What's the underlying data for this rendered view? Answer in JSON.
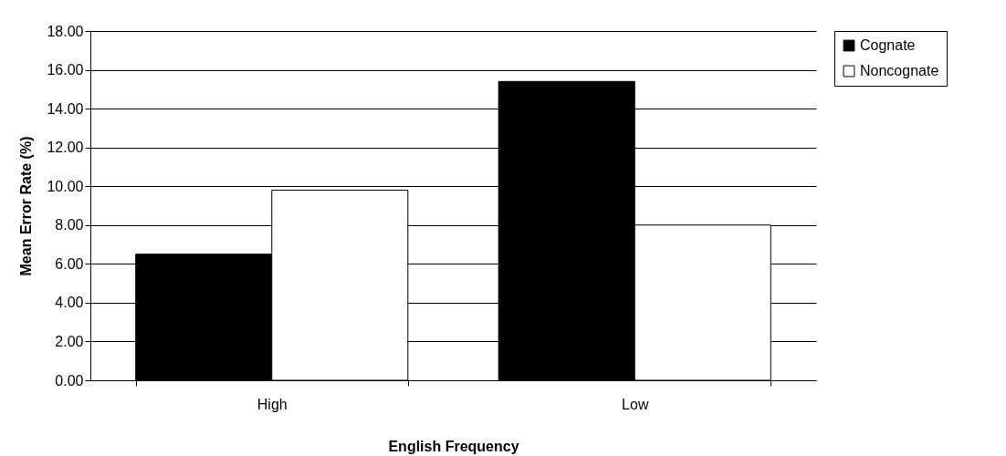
{
  "chart_data": {
    "type": "bar",
    "xlabel": "English Frequency",
    "ylabel": "Mean Error Rate (%)",
    "categories": [
      "High",
      "Low"
    ],
    "series": [
      {
        "name": "Cognate",
        "color": "#000000",
        "values": [
          6.5,
          15.4
        ]
      },
      {
        "name": "Noncognate",
        "color": "#ffffff",
        "values": [
          9.8,
          8.0
        ]
      }
    ],
    "ylim": [
      0,
      18
    ],
    "yticks": [
      {
        "value": 0,
        "label": "0.00"
      },
      {
        "value": 2,
        "label": "2.00"
      },
      {
        "value": 4,
        "label": "4.00"
      },
      {
        "value": 6,
        "label": "6.00"
      },
      {
        "value": 8,
        "label": "8.00"
      },
      {
        "value": 10,
        "label": "10.00"
      },
      {
        "value": 12,
        "label": "12.00"
      },
      {
        "value": 14,
        "label": "14.00"
      },
      {
        "value": 16,
        "label": "16.00"
      },
      {
        "value": 18,
        "label": "18.00"
      }
    ],
    "grid": "y",
    "legend": "right"
  }
}
